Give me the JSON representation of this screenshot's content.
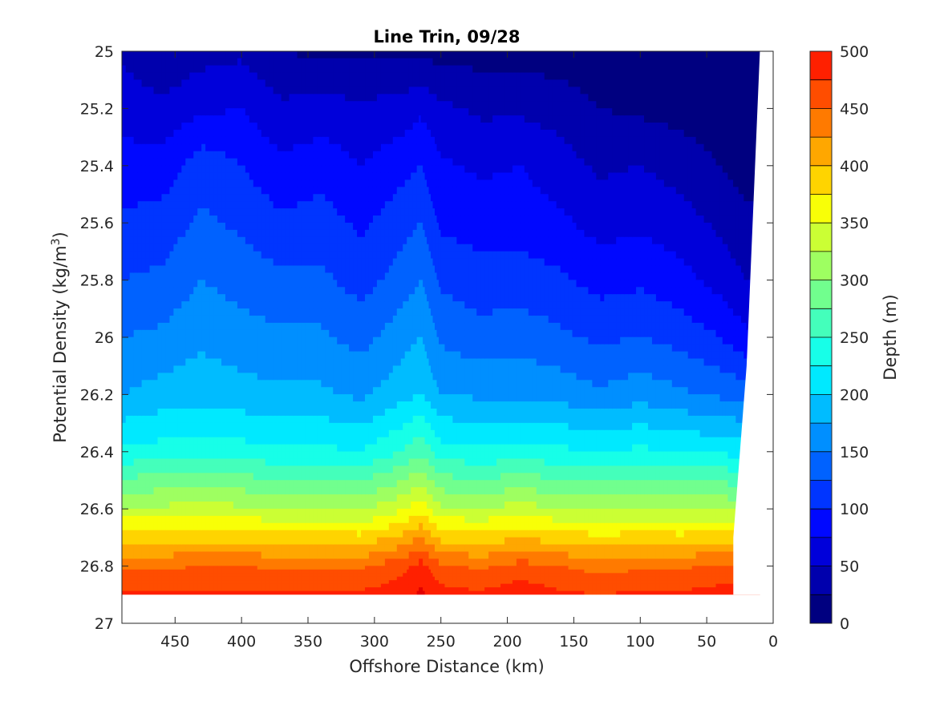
{
  "chart_data": {
    "type": "filled-contour",
    "title": "Line Trin, 09/28",
    "xlabel": "Offshore Distance (km)",
    "ylabel_prefix": "Potential Density (kg/m",
    "ylabel_sup": "3",
    "ylabel_suffix": ")",
    "colorbar_label": "Depth (m)",
    "xlim": [
      490,
      0
    ],
    "x_reversed": true,
    "ylim": [
      25,
      27
    ],
    "y_reversed": true,
    "xticks": [
      450,
      400,
      350,
      300,
      250,
      200,
      150,
      100,
      50,
      0
    ],
    "yticks": [
      25,
      25.2,
      25.4,
      25.6,
      25.8,
      26,
      26.2,
      26.4,
      26.6,
      26.8,
      27
    ],
    "xtick_labels": [
      "450",
      "400",
      "350",
      "300",
      "250",
      "200",
      "150",
      "100",
      "50",
      "0"
    ],
    "ytick_labels": [
      "25",
      "25.2",
      "25.4",
      "25.6",
      "25.8",
      "26",
      "26.2",
      "26.4",
      "26.6",
      "26.8",
      "27"
    ],
    "colorbar_ticks": [
      0,
      50,
      100,
      150,
      200,
      250,
      300,
      350,
      400,
      450,
      500
    ],
    "colorbar_tick_labels": [
      "0",
      "50",
      "100",
      "150",
      "200",
      "250",
      "300",
      "350",
      "400",
      "450",
      "500"
    ],
    "colormap": "jet",
    "colorbar_range": [
      0,
      500
    ],
    "contour_interval": 25,
    "bands": [
      {
        "lower": 0,
        "color": "#000080"
      },
      {
        "lower": 25,
        "color": "#0000AD"
      },
      {
        "lower": 50,
        "color": "#0000DA"
      },
      {
        "lower": 75,
        "color": "#0008FF"
      },
      {
        "lower": 100,
        "color": "#0035FF"
      },
      {
        "lower": 125,
        "color": "#0062FF"
      },
      {
        "lower": 150,
        "color": "#008FFF"
      },
      {
        "lower": 175,
        "color": "#00BCFF"
      },
      {
        "lower": 200,
        "color": "#00E9FF"
      },
      {
        "lower": 225,
        "color": "#17FFE8"
      },
      {
        "lower": 250,
        "color": "#44FFBB"
      },
      {
        "lower": 275,
        "color": "#71FF8E"
      },
      {
        "lower": 300,
        "color": "#9EFF61"
      },
      {
        "lower": 325,
        "color": "#CBFF34"
      },
      {
        "lower": 350,
        "color": "#F8FF07"
      },
      {
        "lower": 375,
        "color": "#FFD400"
      },
      {
        "lower": 400,
        "color": "#FFA700"
      },
      {
        "lower": 425,
        "color": "#FF7A00"
      },
      {
        "lower": 450,
        "color": "#FF4D00"
      },
      {
        "lower": 475,
        "color": "#FF2000"
      },
      {
        "lower": 500,
        "color": "#E30000"
      }
    ],
    "data_extent": {
      "x_min": 10,
      "x_max": 490,
      "y_max_sigma": 26.9,
      "shallow_edge_x": [
        [
          26.7,
          30
        ],
        [
          26.1,
          20
        ],
        [
          25.0,
          10
        ]
      ]
    },
    "isopycnal_depth_grid": {
      "distance_km": [
        490,
        460,
        430,
        400,
        370,
        340,
        310,
        280,
        265,
        250,
        220,
        190,
        160,
        130,
        100,
        70,
        40,
        20,
        10
      ],
      "sigma_levels": [
        25.0,
        25.2,
        25.4,
        25.6,
        25.8,
        26.0,
        26.2,
        26.4,
        26.6,
        26.8,
        26.9
      ],
      "depth_m": [
        [
          45,
          30,
          40,
          45,
          25,
          20,
          20,
          20,
          20,
          15,
          15,
          15,
          10,
          5,
          5,
          5,
          5,
          0,
          0
        ],
        [
          65,
          55,
          70,
          75,
          55,
          60,
          55,
          60,
          70,
          55,
          45,
          45,
          40,
          25,
          20,
          15,
          10,
          5,
          5
        ],
        [
          85,
          85,
          115,
          100,
          80,
          90,
          75,
          90,
          100,
          80,
          70,
          75,
          60,
          45,
          50,
          40,
          25,
          15,
          15
        ],
        [
          105,
          110,
          130,
          120,
          105,
          110,
          95,
          115,
          125,
          95,
          90,
          90,
          80,
          65,
          70,
          60,
          45,
          30,
          30
        ],
        [
          125,
          130,
          150,
          140,
          130,
          130,
          115,
          135,
          150,
          120,
          110,
          110,
          105,
          90,
          95,
          85,
          65,
          50,
          45
        ],
        [
          150,
          155,
          170,
          160,
          155,
          155,
          140,
          165,
          175,
          145,
          135,
          140,
          130,
          120,
          125,
          115,
          100,
          80,
          75
        ],
        [
          175,
          185,
          190,
          185,
          180,
          180,
          170,
          190,
          200,
          175,
          170,
          170,
          165,
          155,
          165,
          155,
          145,
          140,
          140
        ],
        [
          230,
          235,
          240,
          235,
          230,
          230,
          225,
          250,
          270,
          235,
          230,
          235,
          230,
          225,
          230,
          225,
          220,
          215,
          215
        ],
        [
          330,
          330,
          335,
          330,
          325,
          325,
          320,
          345,
          365,
          330,
          325,
          335,
          325,
          320,
          325,
          320,
          320,
          315,
          315
        ],
        [
          445,
          445,
          450,
          450,
          445,
          445,
          445,
          465,
          485,
          455,
          445,
          460,
          450,
          440,
          445,
          445,
          455,
          455,
          455
        ],
        [
          480,
          480,
          480,
          480,
          480,
          480,
          480,
          490,
          505,
          485,
          480,
          490,
          480,
          475,
          480,
          480,
          485,
          485,
          485
        ]
      ]
    }
  }
}
